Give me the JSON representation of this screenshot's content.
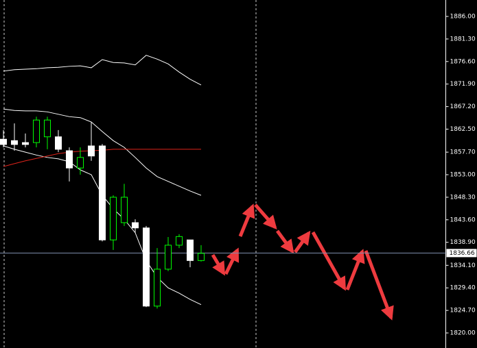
{
  "chart_data": {
    "type": "candlestick",
    "open": [
      1860.4,
      1860.1,
      1859.7,
      1859.7,
      1860.9,
      1860.9,
      1858.0,
      1854.4,
      1859.0,
      1859.0,
      1839.4,
      1843.0,
      1843.0,
      1841.9,
      1825.6,
      1833.3,
      1838.3,
      1839.4,
      1835.1
    ],
    "high": [
      1862.3,
      1863.7,
      1861.6,
      1865.1,
      1865.1,
      1862.3,
      1858.7,
      1858.7,
      1864.0,
      1859.4,
      1848.7,
      1851.1,
      1843.7,
      1842.3,
      1837.7,
      1840.0,
      1840.6,
      1839.4,
      1838.3
    ],
    "low": [
      1858.7,
      1858.0,
      1858.7,
      1858.7,
      1858.3,
      1857.7,
      1851.6,
      1853.0,
      1855.9,
      1839.1,
      1837.3,
      1842.3,
      1840.9,
      1825.4,
      1825.1,
      1832.9,
      1837.7,
      1833.7,
      1834.9
    ],
    "close": [
      1859.3,
      1859.3,
      1859.3,
      1864.4,
      1864.4,
      1858.3,
      1854.4,
      1856.6,
      1856.9,
      1839.4,
      1848.3,
      1848.3,
      1841.9,
      1825.6,
      1833.3,
      1838.3,
      1840.1,
      1835.1,
      1836.6
    ],
    "up_color": "#00ff00",
    "down_color": "#ffffff",
    "lines": [
      {
        "color": "#ffffff",
        "values": [
          1874.6,
          1874.9,
          1875.0,
          1875.1,
          1875.3,
          1875.4,
          1875.6,
          1875.7,
          1875.3,
          1877.0,
          1876.4,
          1876.3,
          1875.9,
          1877.9,
          1877.1,
          1876.1,
          1874.4,
          1872.9,
          1871.7
        ]
      },
      {
        "color": "#ffffff",
        "values": [
          1866.7,
          1866.4,
          1866.3,
          1866.3,
          1866.1,
          1865.6,
          1865.1,
          1864.9,
          1864.0,
          1862.0,
          1860.1,
          1858.7,
          1856.6,
          1854.4,
          1852.6,
          1851.6,
          1850.6,
          1849.6,
          1848.7
        ]
      },
      {
        "color": "#ffffff",
        "values": [
          1859.0,
          1858.3,
          1857.7,
          1857.1,
          1856.6,
          1856.3,
          1855.7,
          1854.0,
          1853.0,
          1848.7,
          1845.9,
          1843.7,
          1840.9,
          1835.1,
          1831.6,
          1829.4,
          1828.3,
          1827.0,
          1825.9
        ]
      },
      {
        "color": "#e0241b",
        "values": [
          1854.7,
          1855.3,
          1855.9,
          1856.4,
          1856.9,
          1857.4,
          1857.7,
          1857.9,
          1858.0,
          1858.1,
          1858.3,
          1858.3,
          1858.3,
          1858.3,
          1858.3,
          1858.3,
          1858.3,
          1858.3,
          1858.3
        ]
      }
    ],
    "current_price": 1836.66,
    "ylim": [
      1816.86,
      1889.43
    ],
    "yticks": [
      {
        "value": 1886,
        "label": "1886.00"
      },
      {
        "value": 1881.3,
        "label": "1881.30"
      },
      {
        "value": 1876.6,
        "label": "1876.60"
      },
      {
        "value": 1871.9,
        "label": "1871.90"
      },
      {
        "value": 1867.2,
        "label": "1867.20"
      },
      {
        "value": 1862.5,
        "label": "1862.50"
      },
      {
        "value": 1857.7,
        "label": "1857.70"
      },
      {
        "value": 1853,
        "label": "1853.00"
      },
      {
        "value": 1848.3,
        "label": "1848.30"
      },
      {
        "value": 1843.6,
        "label": "1843.60"
      },
      {
        "value": 1838.9,
        "label": "1838.90"
      },
      {
        "value": 1834.1,
        "label": "1834.10"
      },
      {
        "value": 1829.4,
        "label": "1829.40"
      },
      {
        "value": 1824.7,
        "label": "1824.70"
      },
      {
        "value": 1820,
        "label": "1820.00"
      }
    ]
  }
}
